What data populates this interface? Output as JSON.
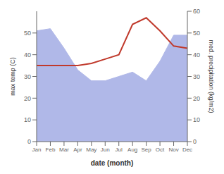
{
  "chart_data": {
    "type": "line",
    "xlabel": "date (month)",
    "ylabel": "max temp (C)",
    "y2label": "med. precipitation (kg/m2)",
    "categories": [
      "Jan",
      "Feb",
      "Mar",
      "Apr",
      "May",
      "Jun",
      "Jul",
      "Aug",
      "Sep",
      "Oct",
      "Nov",
      "Dec"
    ],
    "series": [
      {
        "type": "area",
        "color": "#b0b8e8",
        "axis": "y2",
        "values": [
          51,
          52,
          43,
          33,
          28,
          28,
          30,
          32,
          28,
          37,
          49,
          49
        ]
      },
      {
        "type": "line",
        "color": "#c0392b",
        "values": [
          35,
          35,
          35,
          35,
          36,
          38,
          40,
          54,
          57,
          51,
          44,
          43
        ]
      }
    ],
    "ylim": [
      0,
      60
    ],
    "yticks": [
      0,
      10,
      20,
      30,
      40,
      50
    ],
    "y2lim": [
      0,
      60
    ],
    "y2ticks": [
      0,
      10,
      20,
      30,
      40,
      50,
      60
    ],
    "grid": false
  }
}
